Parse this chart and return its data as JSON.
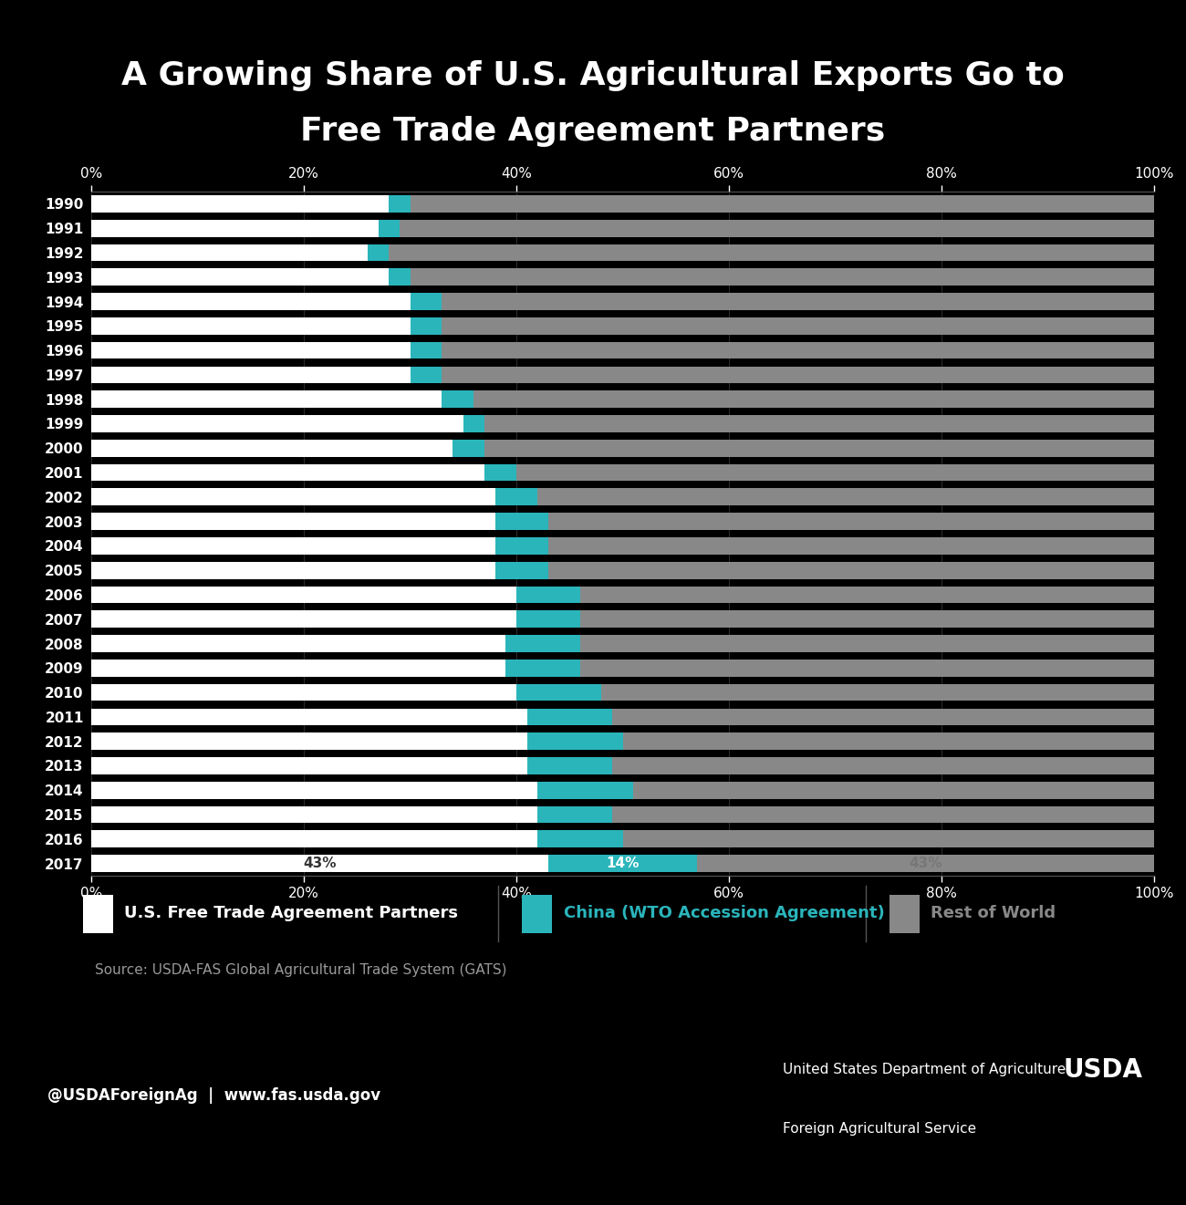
{
  "title_line1": "A Growing Share of U.S. Agricultural Exports Go to",
  "title_line2": "Free Trade Agreement Partners",
  "title_color": "#ffffff",
  "header_bg_color": "#2ab5bb",
  "footer_bg_color": "#2ab5bb",
  "chart_bg_color": "#000000",
  "years": [
    1990,
    1991,
    1992,
    1993,
    1994,
    1995,
    1996,
    1997,
    1998,
    1999,
    2000,
    2001,
    2002,
    2003,
    2004,
    2005,
    2006,
    2007,
    2008,
    2009,
    2010,
    2011,
    2012,
    2013,
    2014,
    2015,
    2016,
    2017
  ],
  "fta_values": [
    28,
    27,
    26,
    28,
    30,
    30,
    30,
    30,
    33,
    35,
    34,
    37,
    38,
    38,
    38,
    38,
    40,
    40,
    39,
    39,
    40,
    41,
    41,
    41,
    42,
    42,
    42,
    43
  ],
  "china_values": [
    2,
    2,
    2,
    2,
    3,
    3,
    3,
    3,
    3,
    2,
    3,
    3,
    4,
    5,
    5,
    5,
    6,
    6,
    7,
    7,
    8,
    8,
    9,
    8,
    9,
    7,
    8,
    14
  ],
  "fta_color": "#ffffff",
  "china_color": "#2ab5bb",
  "rest_color": "#888888",
  "legend_fta_label": "U.S. Free Trade Agreement Partners",
  "legend_china_label": "China (WTO Accession Agreement)",
  "legend_rest_label": "Rest of World",
  "source_text": "Source: USDA-FAS Global Agricultural Trade System (GATS)",
  "footer_left": "@USDAForeignAg  |  www.fas.usda.gov",
  "footer_right1": "United States Department of Agriculture",
  "footer_right2": "Foreign Agricultural Service",
  "tick_color": "#ffffff",
  "annotation_color_fta": "#444444",
  "annotation_color_china": "#ffffff",
  "annotation_color_rest": "#888888"
}
